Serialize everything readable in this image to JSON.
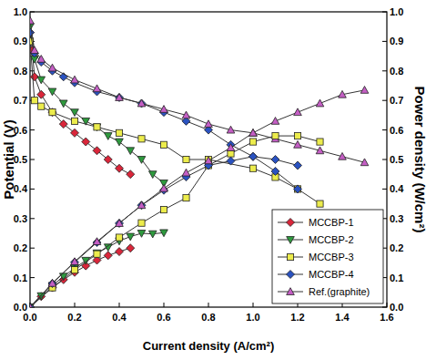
{
  "chart_data": {
    "type": "line",
    "x_label": "Current density (A/cm²)",
    "y_label": "Potential (V)",
    "y2_label": "Power density (W/cm²)",
    "xlim": [
      0,
      1.6
    ],
    "xticks": [
      {
        "value": 0,
        "label": "0.0"
      },
      0.2,
      0.4,
      0.6,
      0.8,
      {
        "value": 1,
        "label": "1.0"
      },
      1.2,
      1.4,
      1.6
    ],
    "ylim": [
      0,
      1
    ],
    "yticks": [
      {
        "value": 0,
        "label": "0.0"
      },
      0.1,
      0.2,
      0.3,
      0.4,
      0.5,
      0.6,
      0.7,
      0.8,
      0.9,
      {
        "value": 1,
        "label": "1.0"
      }
    ],
    "y2lim": [
      0,
      1
    ],
    "y2ticks": [
      {
        "value": 0,
        "label": "0.0"
      },
      0.1,
      0.2,
      0.3,
      0.4,
      0.5,
      0.6,
      0.7,
      0.8,
      0.9,
      {
        "value": 1,
        "label": "1.0"
      }
    ],
    "legend": "lower right",
    "series": [
      {
        "name": "MCCBP-1",
        "color": "#d9263a",
        "marker": "diamond",
        "x": [
          0,
          0.01,
          0.02,
          0.05,
          0.1,
          0.15,
          0.2,
          0.25,
          0.3,
          0.35,
          0.4,
          0.45
        ],
        "values": [
          0.93,
          0.87,
          0.78,
          0.72,
          0.66,
          0.62,
          0.59,
          0.56,
          0.53,
          0.5,
          0.47,
          0.45
        ]
      },
      {
        "name": "MCCBP-2",
        "color": "#2e9a3e",
        "marker": "triangle-down",
        "x": [
          0,
          0.02,
          0.05,
          0.1,
          0.15,
          0.2,
          0.25,
          0.3,
          0.35,
          0.4,
          0.45,
          0.5,
          0.55,
          0.6
        ],
        "values": [
          0.95,
          0.84,
          0.77,
          0.73,
          0.69,
          0.66,
          0.63,
          0.61,
          0.58,
          0.56,
          0.53,
          0.5,
          0.45,
          0.42
        ]
      },
      {
        "name": "MCCBP-3",
        "color": "#ecec4c",
        "marker": "square",
        "x": [
          0,
          0.02,
          0.05,
          0.1,
          0.2,
          0.3,
          0.4,
          0.5,
          0.6,
          0.7,
          0.8,
          1.0,
          1.1,
          1.2,
          1.3
        ],
        "values": [
          0.9,
          0.7,
          0.68,
          0.66,
          0.63,
          0.61,
          0.59,
          0.57,
          0.55,
          0.5,
          0.5,
          0.47,
          0.44,
          0.4,
          0.35
        ]
      },
      {
        "name": "MCCBP-4",
        "color": "#2a52c0",
        "marker": "diamond",
        "x": [
          0,
          0.02,
          0.05,
          0.1,
          0.15,
          0.2,
          0.3,
          0.4,
          0.5,
          0.6,
          0.7,
          0.8,
          0.9,
          1.0,
          1.1,
          1.2
        ],
        "values": [
          0.93,
          0.86,
          0.83,
          0.8,
          0.78,
          0.76,
          0.73,
          0.71,
          0.69,
          0.66,
          0.63,
          0.6,
          0.55,
          0.51,
          0.46,
          0.4
        ]
      },
      {
        "name": "Ref.(graphite)",
        "color": "#c45ec4",
        "marker": "triangle-up",
        "x": [
          0,
          0.02,
          0.05,
          0.1,
          0.2,
          0.3,
          0.4,
          0.5,
          0.6,
          0.7,
          0.8,
          0.9,
          1.0,
          1.1,
          1.2,
          1.3,
          1.4,
          1.5
        ],
        "values": [
          0.97,
          0.87,
          0.84,
          0.81,
          0.77,
          0.74,
          0.71,
          0.69,
          0.67,
          0.65,
          0.62,
          0.6,
          0.59,
          0.57,
          0.55,
          0.53,
          0.51,
          0.49
        ]
      },
      {
        "name": "MCCBP-1",
        "color": "#d9263a",
        "marker": "diamond",
        "axis": "y2",
        "x": [
          0,
          0.05,
          0.1,
          0.15,
          0.2,
          0.25,
          0.3,
          0.35,
          0.4,
          0.45
        ],
        "values": [
          0,
          0.036,
          0.066,
          0.093,
          0.118,
          0.14,
          0.159,
          0.175,
          0.188,
          0.2
        ]
      },
      {
        "name": "MCCBP-2",
        "color": "#2e9a3e",
        "marker": "triangle-down",
        "axis": "y2",
        "x": [
          0,
          0.05,
          0.1,
          0.15,
          0.2,
          0.25,
          0.3,
          0.35,
          0.4,
          0.45,
          0.5,
          0.55,
          0.6
        ],
        "values": [
          0,
          0.038,
          0.073,
          0.104,
          0.132,
          0.158,
          0.183,
          0.203,
          0.224,
          0.239,
          0.25,
          0.248,
          0.252
        ]
      },
      {
        "name": "MCCBP-3",
        "color": "#ecec4c",
        "marker": "square",
        "axis": "y2",
        "x": [
          0,
          0.1,
          0.2,
          0.3,
          0.4,
          0.5,
          0.6,
          0.7,
          0.8,
          0.9,
          1.0,
          1.1,
          1.2,
          1.3
        ],
        "values": [
          0,
          0.066,
          0.126,
          0.18,
          0.236,
          0.285,
          0.33,
          0.37,
          0.48,
          0.52,
          0.56,
          0.58,
          0.58,
          0.56
        ]
      },
      {
        "name": "MCCBP-4",
        "color": "#2a52c0",
        "marker": "diamond",
        "axis": "y2",
        "x": [
          0,
          0.1,
          0.2,
          0.3,
          0.4,
          0.5,
          0.6,
          0.7,
          0.8,
          0.9,
          1.0,
          1.1,
          1.2
        ],
        "values": [
          0,
          0.08,
          0.152,
          0.219,
          0.284,
          0.345,
          0.396,
          0.441,
          0.48,
          0.495,
          0.51,
          0.5,
          0.48
        ]
      },
      {
        "name": "Ref.(graphite)",
        "color": "#c45ec4",
        "marker": "triangle-up",
        "axis": "y2",
        "x": [
          0,
          0.1,
          0.2,
          0.3,
          0.4,
          0.5,
          0.6,
          0.7,
          0.8,
          0.9,
          1.0,
          1.1,
          1.2,
          1.3,
          1.4,
          1.5
        ],
        "values": [
          0,
          0.081,
          0.154,
          0.222,
          0.284,
          0.345,
          0.402,
          0.455,
          0.496,
          0.54,
          0.59,
          0.63,
          0.66,
          0.69,
          0.72,
          0.735
        ]
      }
    ]
  }
}
